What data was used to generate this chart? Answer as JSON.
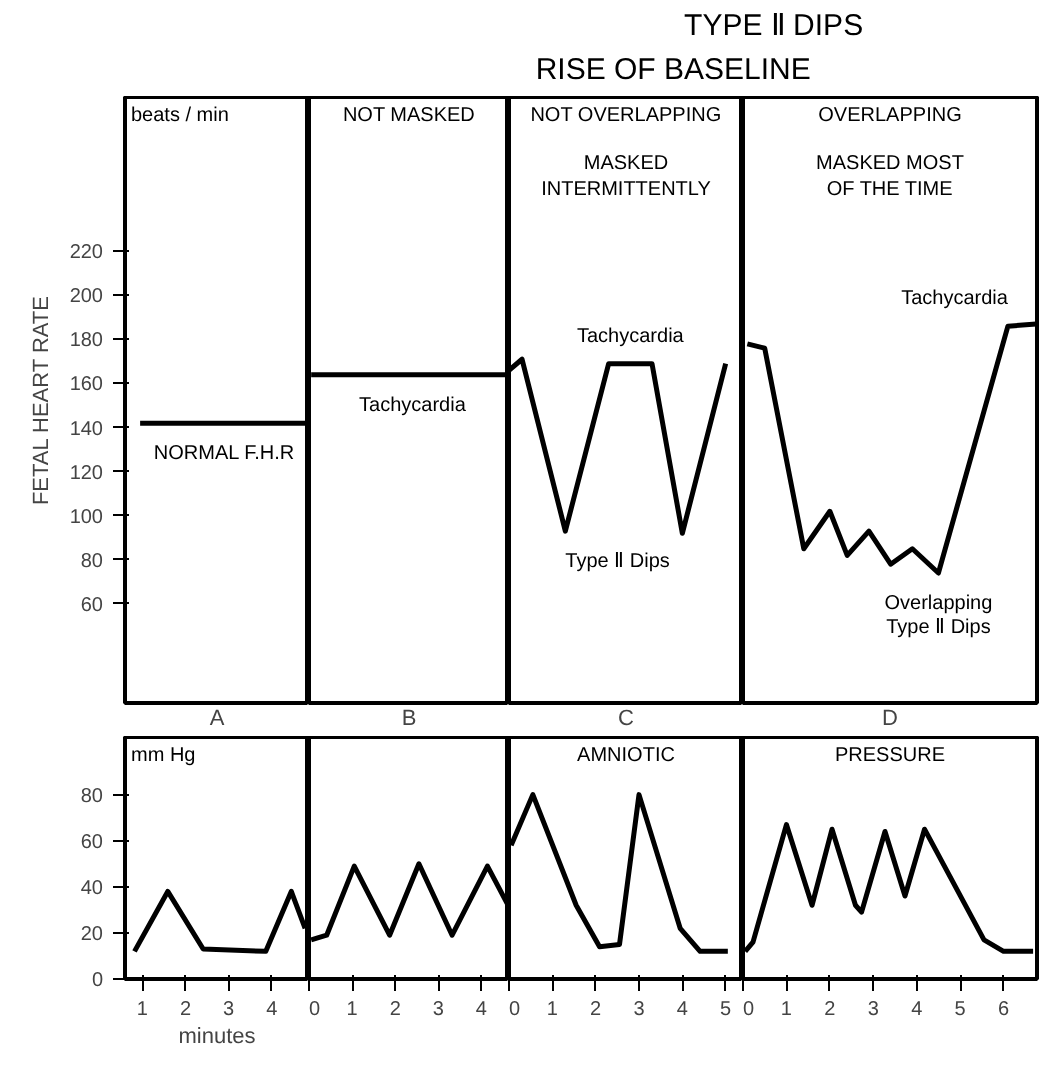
{
  "chart_data": [
    {
      "type": "other",
      "annotations": [
        "TYPE Ⅱ DIPS",
        "RISE OF BASELINE"
      ]
    },
    {
      "type": "line",
      "title": "beats / min",
      "ylabel": "FETAL HEART RATE",
      "xlabel": "A",
      "xlim": [
        0.6,
        4.86
      ],
      "ylim": [
        15,
        290
      ],
      "yticks": [
        60,
        80,
        100,
        120,
        140,
        160,
        180,
        200,
        220
      ],
      "tick_labels": "y",
      "x": [
        0.95,
        4.8
      ],
      "series": [
        {
          "color": "#000000",
          "values": [
            142,
            142
          ]
        }
      ],
      "annotations": [
        {
          "text": "NORMAL F.H.R",
          "x": 2.9,
          "y": 142
        }
      ]
    },
    {
      "type": "line",
      "title": "NOT MASKED",
      "xlabel": "B",
      "xlim": [
        0,
        4.64
      ],
      "ylim": [
        15,
        290
      ],
      "tick_labels": false,
      "x": [
        0.05,
        4.55
      ],
      "series": [
        {
          "color": "#000000",
          "values": [
            164,
            164
          ]
        }
      ],
      "annotations": [
        {
          "text": "Tachycardia",
          "x": 2.4,
          "y": 164
        }
      ]
    },
    {
      "type": "line",
      "title": "NOT OVERLAPPING",
      "subtitle": "MASKED INTERMITTENTLY",
      "xlabel": "C",
      "xlim": [
        0,
        5.4
      ],
      "ylim": [
        15,
        290
      ],
      "tick_labels": false,
      "x": [
        0,
        0.3,
        1.3,
        2.3,
        3.3,
        4.0,
        5.0
      ],
      "series": [
        {
          "color": "#000000",
          "values": [
            166,
            171,
            93,
            169,
            169,
            92,
            169
          ]
        }
      ],
      "annotations": [
        {
          "text": "Tachycardia",
          "x": 2.8,
          "y": 169
        },
        {
          "text": "Type Ⅱ Dips",
          "x": 1.3,
          "y": 93
        }
      ]
    },
    {
      "type": "line",
      "title": "OVERLAPPING",
      "subtitle": "MASKED MOST OF THE TIME",
      "xlabel": "D",
      "xlim": [
        0,
        6.77
      ],
      "ylim": [
        15,
        290
      ],
      "tick_labels": false,
      "x": [
        0.1,
        0.5,
        1.4,
        2.0,
        2.4,
        2.9,
        3.4,
        3.9,
        4.5,
        6.1,
        6.75
      ],
      "series": [
        {
          "color": "#000000",
          "values": [
            178,
            176,
            85,
            102,
            82,
            93,
            78,
            85,
            74,
            186,
            187
          ]
        }
      ],
      "annotations": [
        {
          "text": "Tachycardia",
          "x": 6.1,
          "y": 186
        },
        {
          "text": "Overlapping Type Ⅱ Dips",
          "x": 4.5,
          "y": 74
        }
      ]
    },
    {
      "type": "line",
      "title": "mm Hg",
      "xlabel": "minutes",
      "xlim": [
        0.6,
        4.86
      ],
      "ylim": [
        0,
        105
      ],
      "yticks": [
        0,
        20,
        40,
        60,
        80
      ],
      "xticks": [
        1,
        2,
        3,
        4
      ],
      "x": [
        0.82,
        1.59,
        2.41,
        3.86,
        4.45,
        4.77
      ],
      "series": [
        {
          "color": "#000000",
          "values": [
            12,
            38,
            13,
            12,
            38,
            22
          ]
        }
      ]
    },
    {
      "type": "line",
      "xlim": [
        0,
        4.64
      ],
      "ylim": [
        0,
        105
      ],
      "xticks": [
        0,
        1,
        2,
        3,
        4
      ],
      "tick_labels": "x",
      "x": [
        0.05,
        0.41,
        1.05,
        1.87,
        2.55,
        3.32,
        4.14,
        4.62
      ],
      "series": [
        {
          "color": "#000000",
          "values": [
            17,
            19,
            49,
            19,
            50,
            19,
            49,
            32
          ]
        }
      ]
    },
    {
      "type": "line",
      "title": "AMNIOTIC",
      "xlim": [
        0,
        5.4
      ],
      "ylim": [
        0,
        105
      ],
      "xticks": [
        0,
        1,
        2,
        3,
        4,
        5
      ],
      "tick_labels": "x",
      "x": [
        0.05,
        0.55,
        1.55,
        2.09,
        2.55,
        3.0,
        3.95,
        4.41,
        5.05
      ],
      "series": [
        {
          "color": "#000000",
          "values": [
            58,
            80,
            32,
            14,
            15,
            80,
            22,
            12,
            12
          ]
        }
      ]
    },
    {
      "type": "line",
      "title": "PRESSURE",
      "xlim": [
        0,
        6.77
      ],
      "ylim": [
        0,
        105
      ],
      "xticks": [
        0,
        1,
        2,
        3,
        4,
        5,
        6
      ],
      "tick_labels": "x",
      "x": [
        0.05,
        0.23,
        1.0,
        1.59,
        2.05,
        2.59,
        2.73,
        3.27,
        3.73,
        4.18,
        5.55,
        6.0,
        6.68
      ],
      "series": [
        {
          "color": "#000000",
          "values": [
            12,
            16,
            67,
            32,
            65,
            32,
            29,
            64,
            36,
            65,
            17,
            12,
            12
          ]
        }
      ]
    }
  ]
}
